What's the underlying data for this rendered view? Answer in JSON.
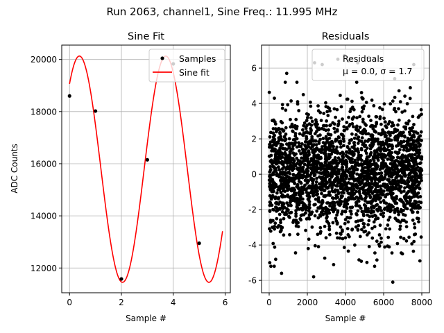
{
  "figure": {
    "suptitle": "Run 2063, channel1, Sine Freq.: 11.995 MHz"
  },
  "chart_data": [
    {
      "type": "line",
      "title": "Sine Fit",
      "xlabel": "Sample #",
      "ylabel": "ADC Counts",
      "xlim": [
        -0.3,
        6.2
      ],
      "ylim": [
        11050,
        20550
      ],
      "xticks": [
        0,
        2,
        4,
        6
      ],
      "yticks": [
        12000,
        14000,
        16000,
        18000,
        20000
      ],
      "grid": true,
      "legend_position": "top-right",
      "series": [
        {
          "name": "Samples",
          "kind": "scatter",
          "color": "#000000",
          "x": [
            0,
            1,
            2,
            3,
            4,
            5
          ],
          "y": [
            18600,
            18020,
            11580,
            16150,
            19830,
            12950
          ]
        },
        {
          "name": "Sine fit",
          "kind": "line",
          "color": "#ff0000",
          "amplitude": 4340,
          "offset": 15790,
          "period": 3.33,
          "phase_shift": -0.38,
          "x_range": [
            0,
            5.9
          ]
        }
      ]
    },
    {
      "type": "scatter",
      "title": "Residuals",
      "xlabel": "Sample #",
      "ylabel": "",
      "xlim": [
        -400,
        8400
      ],
      "ylim": [
        -6.7,
        7.3
      ],
      "xticks": [
        0,
        2000,
        4000,
        6000,
        8000
      ],
      "yticks": [
        -6,
        -4,
        -2,
        0,
        2,
        4,
        6
      ],
      "grid": true,
      "legend_position": "top-right",
      "series": [
        {
          "name": "Residuals",
          "color": "#000000",
          "n_points": 8000,
          "mean": 0.0,
          "std": 1.7,
          "x_range": [
            0,
            7999
          ],
          "outliers": [
            {
              "x": 2380,
              "y": 6.3
            },
            {
              "x": 2780,
              "y": 6.2
            },
            {
              "x": 3600,
              "y": 6.5
            },
            {
              "x": 3940,
              "y": 6.7
            },
            {
              "x": 4150,
              "y": 6.4
            },
            {
              "x": 4640,
              "y": 6.3
            },
            {
              "x": 5220,
              "y": 6.6
            },
            {
              "x": 6580,
              "y": 5.4
            },
            {
              "x": 7580,
              "y": 6.2
            },
            {
              "x": 920,
              "y": 5.7
            },
            {
              "x": 2330,
              "y": -5.8
            },
            {
              "x": 6480,
              "y": -6.1
            },
            {
              "x": 650,
              "y": -5.6
            },
            {
              "x": 7900,
              "y": -4.9
            },
            {
              "x": 30,
              "y": -5.0
            }
          ]
        }
      ],
      "legend_lines": [
        "Residuals",
        "μ = 0.0, σ = 1.7"
      ]
    }
  ]
}
